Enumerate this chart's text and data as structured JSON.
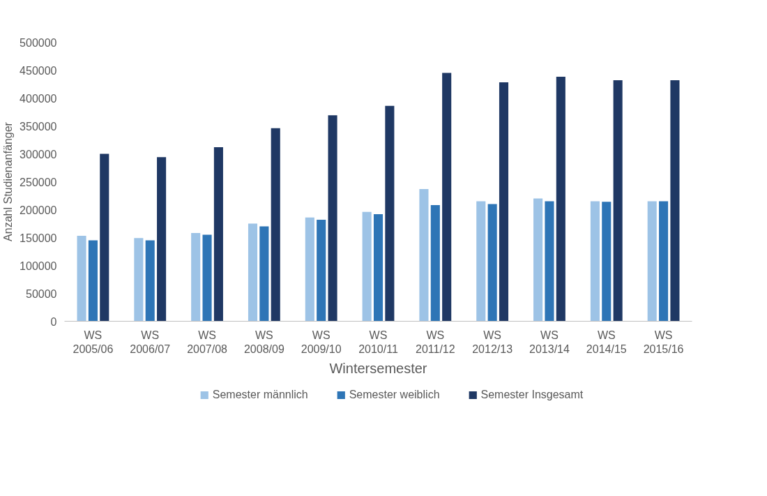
{
  "chart_data": {
    "type": "bar",
    "xlabel": "Wintersemester",
    "ylabel": "Anzahl Studienanfänger",
    "categories": [
      "WS 2005/06",
      "WS 2006/07",
      "WS 2007/08",
      "WS 2008/09",
      "WS 2009/10",
      "WS 2010/11",
      "WS 2011/12",
      "WS 2012/13",
      "WS 2013/14",
      "WS 2014/15",
      "WS 2015/16"
    ],
    "series": [
      {
        "name": "Semester männlich",
        "color": "#9dc3e6",
        "values": [
          153000,
          149000,
          158000,
          175000,
          186000,
          196000,
          237000,
          215000,
          220000,
          215000,
          215000
        ]
      },
      {
        "name": "Semester weiblich",
        "color": "#2e75b6",
        "values": [
          145000,
          145000,
          155000,
          170000,
          182000,
          192000,
          208000,
          210000,
          215000,
          214000,
          215000
        ]
      },
      {
        "name": "Semester Insgesamt",
        "color": "#1f3864",
        "values": [
          300000,
          294000,
          312000,
          346000,
          369000,
          386000,
          445000,
          428000,
          438000,
          432000,
          432000
        ]
      }
    ],
    "ylim": [
      0,
      500000
    ],
    "yticks": [
      0,
      50000,
      100000,
      150000,
      200000,
      250000,
      300000,
      350000,
      400000,
      450000,
      500000
    ],
    "grid": false,
    "legend": "bottom"
  }
}
